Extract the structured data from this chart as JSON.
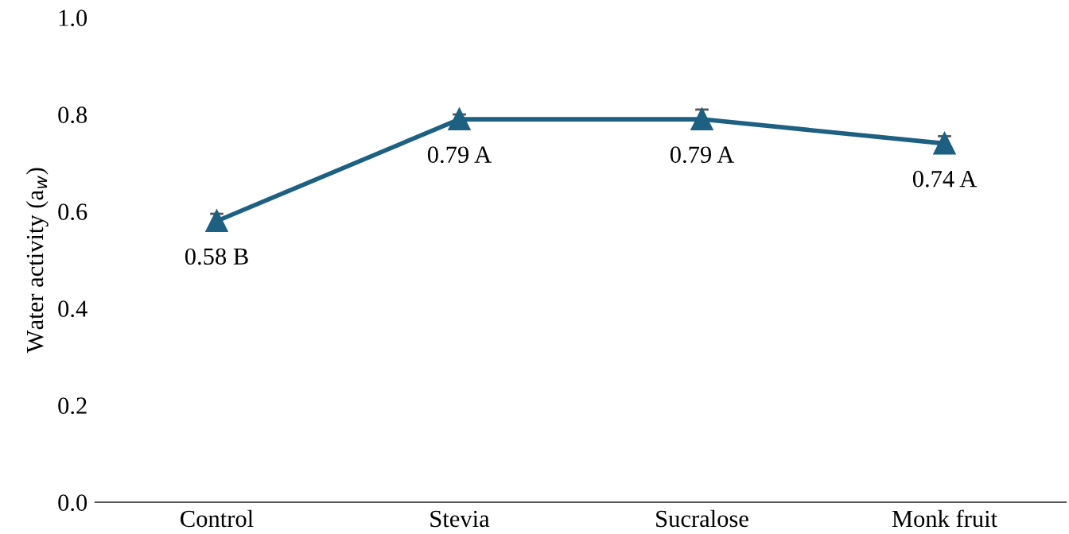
{
  "chart_data": {
    "type": "line",
    "ylabel": "Water activity (a$_{w}$)",
    "categories": [
      "Control",
      "Stevia",
      "Sucralose",
      "Monk fruit"
    ],
    "series": [
      {
        "color": "#1d6082",
        "values": [
          0.58,
          0.79,
          0.79,
          0.74
        ],
        "errors": [
          0.015,
          0.01,
          0.02,
          0.015
        ],
        "value_labels": [
          "0.58 B",
          "0.79 A",
          "0.79 A",
          "0.74 A"
        ]
      }
    ],
    "ylim": [
      0,
      1
    ],
    "yticks": [
      {
        "value": 0,
        "label": "0.0"
      },
      0.2,
      0.4,
      0.6,
      0.8,
      {
        "value": 1,
        "label": "1.0"
      }
    ],
    "marker": "triangle",
    "line_style": "solid",
    "grid": false,
    "legend": false
  }
}
